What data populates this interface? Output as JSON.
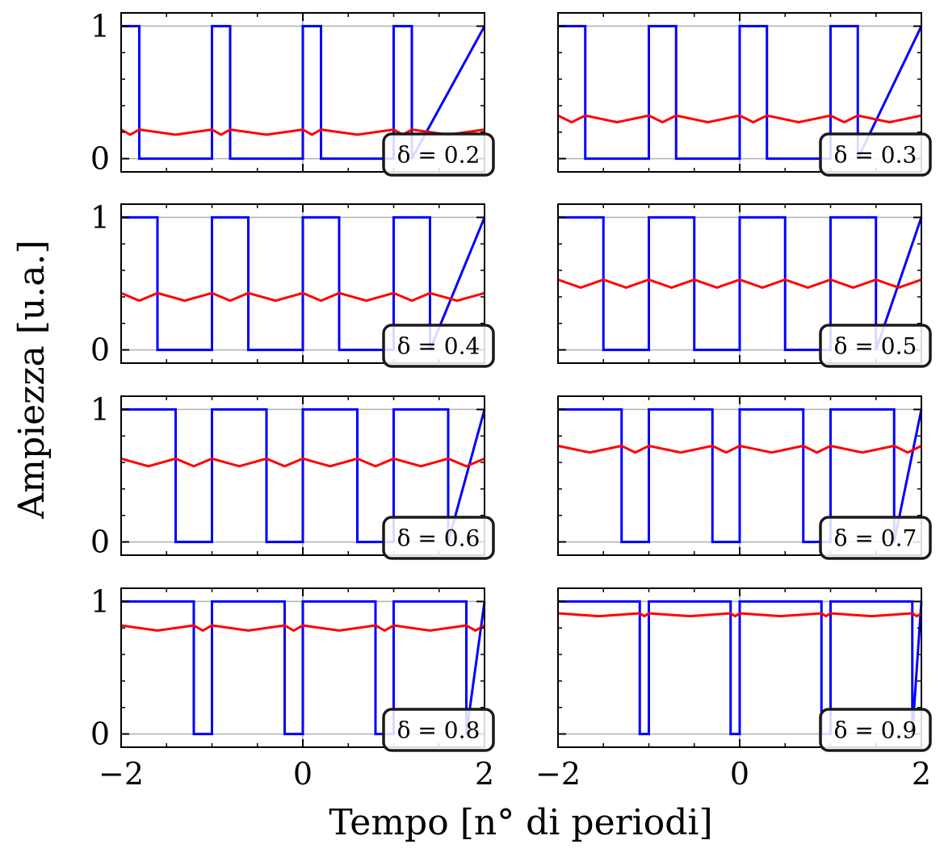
{
  "figure": {
    "ylabel": "Ampiezza [u.a.]",
    "xlabel": "Tempo [n° di periodi]"
  },
  "chart_data": [
    {
      "type": "line",
      "label": "δ = 0.2",
      "duty": 0.2,
      "xlim": [
        -2,
        2
      ],
      "ylim": [
        -0.1,
        1.1
      ],
      "xticks": [
        "−2",
        "0",
        "2"
      ],
      "yticks": [
        "0",
        "1"
      ],
      "grid": true,
      "legend": "bottom-right",
      "series": [
        {
          "color": "#0000ff",
          "kind": "square",
          "duty": 0.2,
          "mean": 0.2
        },
        {
          "color": "#ff0000",
          "kind": "running-mean",
          "duty": 0.2,
          "mean": 0.2
        }
      ]
    },
    {
      "type": "line",
      "label": "δ = 0.3",
      "duty": 0.3,
      "xlim": [
        -2,
        2
      ],
      "ylim": [
        -0.1,
        1.1
      ],
      "xticks": [
        "−2",
        "0",
        "2"
      ],
      "yticks": [
        "0",
        "1"
      ],
      "grid": true,
      "legend": "bottom-right",
      "series": [
        {
          "color": "#0000ff",
          "kind": "square",
          "duty": 0.3,
          "mean": 0.3
        },
        {
          "color": "#ff0000",
          "kind": "running-mean",
          "duty": 0.3,
          "mean": 0.3
        }
      ]
    },
    {
      "type": "line",
      "label": "δ = 0.4",
      "duty": 0.4,
      "xlim": [
        -2,
        2
      ],
      "ylim": [
        -0.1,
        1.1
      ],
      "xticks": [
        "−2",
        "0",
        "2"
      ],
      "yticks": [
        "0",
        "1"
      ],
      "grid": true,
      "legend": "bottom-right",
      "series": [
        {
          "color": "#0000ff",
          "kind": "square",
          "duty": 0.4,
          "mean": 0.4
        },
        {
          "color": "#ff0000",
          "kind": "running-mean",
          "duty": 0.4,
          "mean": 0.4
        }
      ]
    },
    {
      "type": "line",
      "label": "δ = 0.5",
      "duty": 0.5,
      "xlim": [
        -2,
        2
      ],
      "ylim": [
        -0.1,
        1.1
      ],
      "xticks": [
        "−2",
        "0",
        "2"
      ],
      "yticks": [
        "0",
        "1"
      ],
      "grid": true,
      "legend": "bottom-right",
      "series": [
        {
          "color": "#0000ff",
          "kind": "square",
          "duty": 0.5,
          "mean": 0.5
        },
        {
          "color": "#ff0000",
          "kind": "running-mean",
          "duty": 0.5,
          "mean": 0.5
        }
      ]
    },
    {
      "type": "line",
      "label": "δ = 0.6",
      "duty": 0.6,
      "xlim": [
        -2,
        2
      ],
      "ylim": [
        -0.1,
        1.1
      ],
      "xticks": [
        "−2",
        "0",
        "2"
      ],
      "yticks": [
        "0",
        "1"
      ],
      "grid": true,
      "legend": "bottom-right",
      "series": [
        {
          "color": "#0000ff",
          "kind": "square",
          "duty": 0.6,
          "mean": 0.6
        },
        {
          "color": "#ff0000",
          "kind": "running-mean",
          "duty": 0.6,
          "mean": 0.6
        }
      ]
    },
    {
      "type": "line",
      "label": "δ = 0.7",
      "duty": 0.7,
      "xlim": [
        -2,
        2
      ],
      "ylim": [
        -0.1,
        1.1
      ],
      "xticks": [
        "−2",
        "0",
        "2"
      ],
      "yticks": [
        "0",
        "1"
      ],
      "grid": true,
      "legend": "bottom-right",
      "series": [
        {
          "color": "#0000ff",
          "kind": "square",
          "duty": 0.7,
          "mean": 0.7
        },
        {
          "color": "#ff0000",
          "kind": "running-mean",
          "duty": 0.7,
          "mean": 0.7
        }
      ]
    },
    {
      "type": "line",
      "label": "δ = 0.8",
      "duty": 0.8,
      "xlim": [
        -2,
        2
      ],
      "ylim": [
        -0.1,
        1.1
      ],
      "xticks": [
        "−2",
        "0",
        "2"
      ],
      "yticks": [
        "0",
        "1"
      ],
      "grid": true,
      "legend": "bottom-right",
      "series": [
        {
          "color": "#0000ff",
          "kind": "square",
          "duty": 0.8,
          "mean": 0.8
        },
        {
          "color": "#ff0000",
          "kind": "running-mean",
          "duty": 0.8,
          "mean": 0.8
        }
      ]
    },
    {
      "type": "line",
      "label": "δ = 0.9",
      "duty": 0.9,
      "xlim": [
        -2,
        2
      ],
      "ylim": [
        -0.1,
        1.1
      ],
      "xticks": [
        "−2",
        "0",
        "2"
      ],
      "yticks": [
        "0",
        "1"
      ],
      "grid": true,
      "legend": "bottom-right",
      "series": [
        {
          "color": "#0000ff",
          "kind": "square",
          "duty": 0.9,
          "mean": 0.9
        },
        {
          "color": "#ff0000",
          "kind": "running-mean",
          "duty": 0.9,
          "mean": 0.9
        }
      ]
    }
  ]
}
